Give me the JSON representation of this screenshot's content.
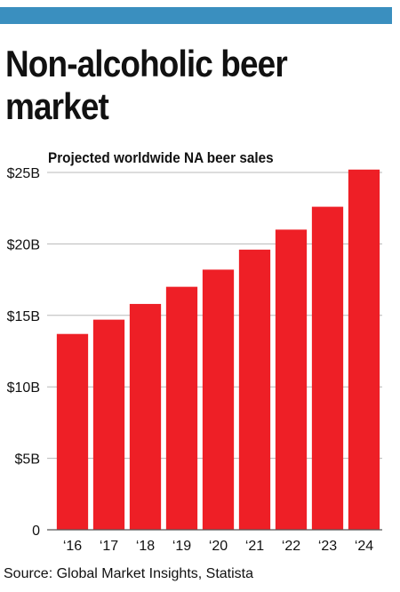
{
  "header": {
    "accent_color": "#3a8fbf"
  },
  "title": "Non-alcoholic beer market",
  "chart_data": {
    "type": "bar",
    "title": "Projected worldwide NA beer sales",
    "xlabel": "",
    "ylabel": "",
    "categories": [
      "‘16",
      "‘17",
      "‘18",
      "‘19",
      "‘20",
      "‘21",
      "‘22",
      "‘23",
      "‘24"
    ],
    "values": [
      13.7,
      14.7,
      15.8,
      17.0,
      18.2,
      19.6,
      21.0,
      22.6,
      25.2
    ],
    "ylim": [
      0,
      25
    ],
    "yticks": [
      0,
      5,
      10,
      15,
      20,
      25
    ],
    "ytick_labels": [
      "0",
      "$5B",
      "$10B",
      "$15B",
      "$20B",
      "$25B"
    ],
    "grid": true,
    "bar_color": "#ee1f26",
    "grid_color": "#b8b8b8"
  },
  "source": "Source: Global Market Insights, Statista"
}
